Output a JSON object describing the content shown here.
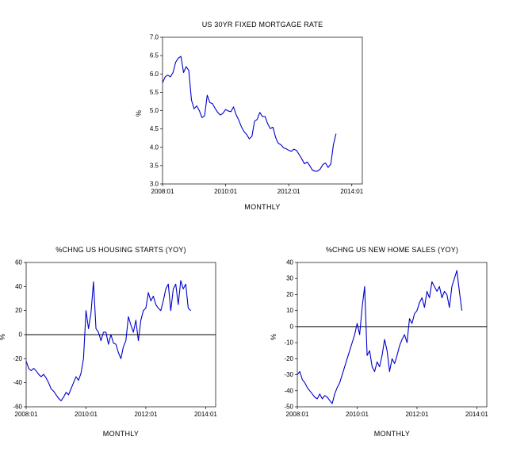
{
  "page": {
    "background": "#ffffff"
  },
  "chart_data": [
    {
      "type": "line",
      "title": "US 30YR FIXED MORTGAGE RATE",
      "xlabel": "MONTHLY",
      "ylabel": "%",
      "x_start": "2008:01",
      "x_unit": "months since 2008:01",
      "xlim": [
        0,
        76
      ],
      "ylim": [
        3.0,
        7.0
      ],
      "x_ticks": [
        {
          "v": 0,
          "label": "2008:01"
        },
        {
          "v": 24,
          "label": "2010:01"
        },
        {
          "v": 48,
          "label": "2012:01"
        },
        {
          "v": 72,
          "label": "2014:01"
        }
      ],
      "y_ticks": [
        {
          "v": 3.0,
          "label": "3.0"
        },
        {
          "v": 3.5,
          "label": "3.5"
        },
        {
          "v": 4.0,
          "label": "4.0"
        },
        {
          "v": 4.5,
          "label": "4.5"
        },
        {
          "v": 5.0,
          "label": "5.0"
        },
        {
          "v": 5.5,
          "label": "5.5"
        },
        {
          "v": 6.0,
          "label": "6.0"
        },
        {
          "v": 6.5,
          "label": "6.5"
        },
        {
          "v": 7.0,
          "label": "7.0"
        }
      ],
      "zero_line": false,
      "line_color": "#0000cc",
      "values": [
        5.76,
        5.92,
        5.97,
        5.92,
        6.04,
        6.32,
        6.43,
        6.48,
        6.04,
        6.2,
        6.09,
        5.29,
        5.05,
        5.13,
        5.0,
        4.81,
        4.86,
        5.42,
        5.22,
        5.19,
        5.06,
        4.95,
        4.88,
        4.93,
        5.03,
        4.99,
        4.97,
        5.1,
        4.89,
        4.74,
        4.56,
        4.43,
        4.35,
        4.23,
        4.3,
        4.71,
        4.76,
        4.95,
        4.84,
        4.84,
        4.64,
        4.51,
        4.55,
        4.27,
        4.11,
        4.07,
        3.99,
        3.96,
        3.92,
        3.89,
        3.95,
        3.91,
        3.8,
        3.68,
        3.55,
        3.6,
        3.5,
        3.38,
        3.35,
        3.35,
        3.41,
        3.53,
        3.57,
        3.45,
        3.54,
        4.07,
        4.37
      ]
    },
    {
      "type": "line",
      "title": "%CHNG US HOUSING STARTS (YOY)",
      "xlabel": "MONTHLY",
      "ylabel": "%",
      "x_start": "2008:01",
      "x_unit": "months since 2008:01",
      "xlim": [
        0,
        76
      ],
      "ylim": [
        -60,
        60
      ],
      "x_ticks": [
        {
          "v": 0,
          "label": "2008:01"
        },
        {
          "v": 24,
          "label": "2010:01"
        },
        {
          "v": 48,
          "label": "2012:01"
        },
        {
          "v": 72,
          "label": "2014:01"
        }
      ],
      "y_ticks": [
        {
          "v": -60,
          "label": "-60"
        },
        {
          "v": -40,
          "label": "-40"
        },
        {
          "v": -20,
          "label": "-20"
        },
        {
          "v": 0,
          "label": "0"
        },
        {
          "v": 20,
          "label": "20"
        },
        {
          "v": 40,
          "label": "40"
        },
        {
          "v": 60,
          "label": "60"
        }
      ],
      "zero_line": true,
      "line_color": "#0000cc",
      "values": [
        -22,
        -28,
        -30,
        -28,
        -30,
        -33,
        -35,
        -33,
        -36,
        -40,
        -45,
        -47,
        -50,
        -53,
        -55,
        -52,
        -48,
        -50,
        -45,
        -40,
        -35,
        -38,
        -32,
        -20,
        20,
        5,
        18,
        44,
        5,
        2,
        -5,
        2,
        2,
        -8,
        0,
        -7,
        -8,
        -15,
        -20,
        -10,
        -5,
        15,
        8,
        2,
        12,
        -5,
        12,
        20,
        22,
        35,
        28,
        32,
        25,
        22,
        20,
        28,
        38,
        42,
        20,
        38,
        42,
        25,
        45,
        38,
        42,
        22,
        20
      ]
    },
    {
      "type": "line",
      "title": "%CHNG US NEW HOME SALES (YOY)",
      "xlabel": "MONTHLY",
      "ylabel": "%",
      "x_start": "2008:01",
      "x_unit": "months since 2008:01",
      "xlim": [
        0,
        76
      ],
      "ylim": [
        -50,
        40
      ],
      "x_ticks": [
        {
          "v": 0,
          "label": "2008:01"
        },
        {
          "v": 24,
          "label": "2010:01"
        },
        {
          "v": 48,
          "label": "2012:01"
        },
        {
          "v": 72,
          "label": "2014:01"
        }
      ],
      "y_ticks": [
        {
          "v": -50,
          "label": "-50"
        },
        {
          "v": -40,
          "label": "-40"
        },
        {
          "v": -30,
          "label": "-30"
        },
        {
          "v": -20,
          "label": "-20"
        },
        {
          "v": -10,
          "label": "-10"
        },
        {
          "v": 0,
          "label": "0"
        },
        {
          "v": 10,
          "label": "10"
        },
        {
          "v": 20,
          "label": "20"
        },
        {
          "v": 30,
          "label": "30"
        },
        {
          "v": 40,
          "label": "40"
        }
      ],
      "zero_line": true,
      "line_color": "#0000cc",
      "values": [
        -30,
        -28,
        -33,
        -35,
        -38,
        -40,
        -42,
        -44,
        -45,
        -42,
        -45,
        -43,
        -44,
        -46,
        -48,
        -42,
        -38,
        -35,
        -30,
        -25,
        -20,
        -15,
        -10,
        -5,
        2,
        -5,
        12,
        25,
        -18,
        -15,
        -25,
        -28,
        -22,
        -25,
        -18,
        -8,
        -15,
        -28,
        -20,
        -23,
        -18,
        -12,
        -8,
        -5,
        -10,
        5,
        2,
        8,
        10,
        15,
        18,
        12,
        22,
        18,
        28,
        25,
        22,
        25,
        18,
        22,
        20,
        12,
        25,
        30,
        35,
        22,
        10
      ]
    }
  ]
}
